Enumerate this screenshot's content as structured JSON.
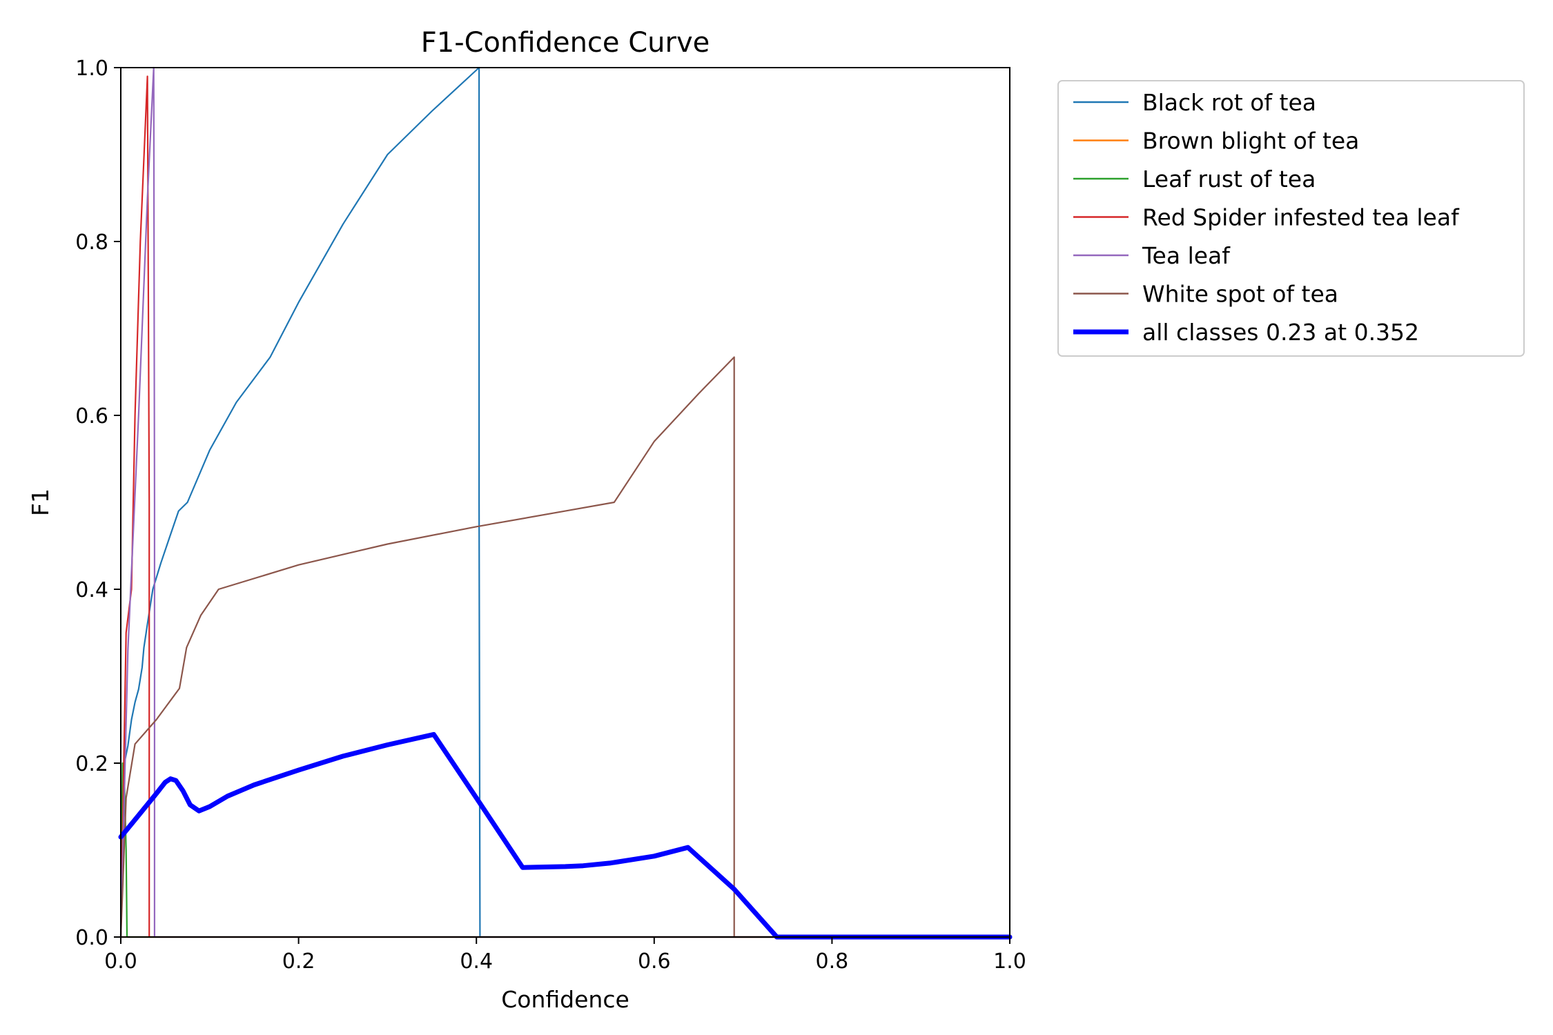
{
  "chart_data": {
    "type": "line",
    "title": "F1-Confidence Curve",
    "xlabel": "Confidence",
    "ylabel": "F1",
    "xlim": [
      0.0,
      1.0
    ],
    "ylim": [
      0.0,
      1.0
    ],
    "xticks": [
      "0.0",
      "0.2",
      "0.4",
      "0.6",
      "0.8",
      "1.0"
    ],
    "yticks": [
      "0.0",
      "0.2",
      "0.4",
      "0.6",
      "0.8",
      "1.0"
    ],
    "grid": false,
    "legend_position": "outside upper right",
    "series": [
      {
        "name": "Black rot of tea",
        "color": "#1f77b4",
        "width": "thin",
        "x": [
          0.0,
          0.004,
          0.008,
          0.012,
          0.016,
          0.02,
          0.024,
          0.026,
          0.03,
          0.036,
          0.045,
          0.055,
          0.065,
          0.075,
          0.1,
          0.13,
          0.168,
          0.2,
          0.25,
          0.3,
          0.35,
          0.403,
          0.403,
          0.404,
          1.0
        ],
        "y": [
          0.0,
          0.2,
          0.22,
          0.25,
          0.27,
          0.285,
          0.31,
          0.333,
          0.36,
          0.4,
          0.43,
          0.46,
          0.49,
          0.5,
          0.56,
          0.615,
          0.667,
          0.73,
          0.82,
          0.9,
          0.95,
          1.0,
          0.5,
          0.0,
          0.0
        ]
      },
      {
        "name": "Brown blight of tea",
        "color": "#ff7f0e",
        "width": "thin",
        "x": [
          0.0,
          1.0
        ],
        "y": [
          0.0,
          0.0
        ]
      },
      {
        "name": "Leaf rust of tea",
        "color": "#2ca02c",
        "width": "thin",
        "x": [
          0.0,
          0.002,
          0.004,
          0.006,
          0.007,
          1.0
        ],
        "y": [
          0.0,
          0.2,
          0.18,
          0.1,
          0.0,
          0.0
        ]
      },
      {
        "name": "Red Spider infested tea leaf",
        "color": "#d62728",
        "width": "thin",
        "x": [
          0.0,
          0.006,
          0.012,
          0.016,
          0.022,
          0.03,
          0.032,
          0.032,
          1.0
        ],
        "y": [
          0.0,
          0.35,
          0.4,
          0.6,
          0.8,
          0.99,
          0.5,
          0.0,
          0.0
        ]
      },
      {
        "name": "Tea leaf",
        "color": "#9467bd",
        "width": "thin",
        "x": [
          0.0,
          0.008,
          0.02,
          0.03,
          0.037,
          0.038,
          0.038,
          1.0
        ],
        "y": [
          0.0,
          0.33,
          0.6,
          0.85,
          1.0,
          0.5,
          0.0,
          0.0
        ]
      },
      {
        "name": "White spot of tea",
        "color": "#8c564b",
        "width": "thin",
        "x": [
          0.0,
          0.006,
          0.016,
          0.04,
          0.066,
          0.074,
          0.09,
          0.11,
          0.2,
          0.3,
          0.4,
          0.5,
          0.555,
          0.6,
          0.65,
          0.69,
          0.69,
          1.0
        ],
        "y": [
          0.0,
          0.16,
          0.222,
          0.25,
          0.286,
          0.333,
          0.37,
          0.4,
          0.428,
          0.452,
          0.472,
          0.49,
          0.5,
          0.57,
          0.625,
          0.667,
          0.0,
          0.0
        ]
      },
      {
        "name": "all classes 0.23 at 0.352",
        "color": "#0000ff",
        "width": "thick",
        "x": [
          0.0,
          0.02,
          0.04,
          0.05,
          0.056,
          0.062,
          0.07,
          0.078,
          0.088,
          0.1,
          0.12,
          0.15,
          0.2,
          0.25,
          0.3,
          0.352,
          0.4,
          0.452,
          0.5,
          0.52,
          0.55,
          0.6,
          0.638,
          0.69,
          0.738,
          0.8,
          1.0
        ],
        "y": [
          0.115,
          0.14,
          0.165,
          0.178,
          0.182,
          0.18,
          0.168,
          0.152,
          0.145,
          0.15,
          0.162,
          0.175,
          0.192,
          0.208,
          0.221,
          0.233,
          0.16,
          0.08,
          0.081,
          0.082,
          0.085,
          0.093,
          0.103,
          0.055,
          0.0,
          0.0,
          0.0
        ]
      }
    ]
  }
}
